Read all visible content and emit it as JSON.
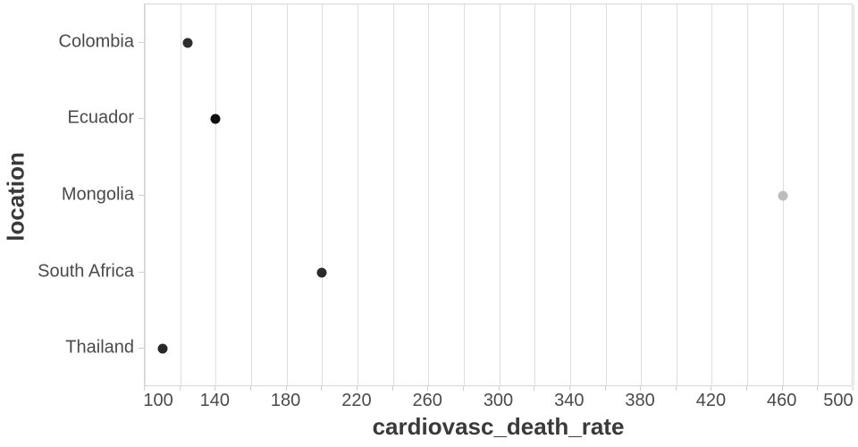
{
  "chart_data": {
    "type": "scatter",
    "variant": "horizontal-dot-plot",
    "title": "",
    "xlabel": "cardiovasc_death_rate",
    "ylabel": "location",
    "categories": [
      "Colombia",
      "Ecuador",
      "Mongolia",
      "South Africa",
      "Thailand"
    ],
    "values": [
      124,
      140,
      460,
      200,
      110
    ],
    "point_colors": [
      "#2d2d2d",
      "#0f0f0f",
      "#bdbdbd",
      "#2b2b2b",
      "#282828"
    ],
    "xlim": [
      100,
      500
    ],
    "x_grid_step": 20,
    "x_tick_labels": [
      100,
      140,
      180,
      220,
      260,
      300,
      340,
      380,
      420,
      460,
      500
    ],
    "grid": "vertical-only",
    "legend": "none"
  },
  "colors": {
    "background": "#ffffff",
    "gridline": "#dedede",
    "plot_border": "#d6d6d6",
    "tick_mark": "#cfcfcf",
    "tick_label": "#4a4a4a",
    "axis_title": "#3a3a3a"
  }
}
